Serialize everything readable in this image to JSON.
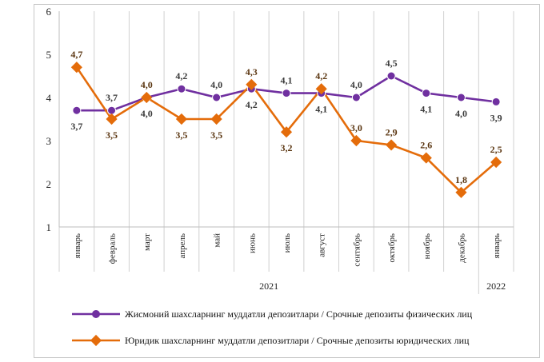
{
  "chart_data": {
    "type": "line",
    "categories": [
      "январь",
      "февраль",
      "март",
      "апрель",
      "май",
      "июнь",
      "июль",
      "август",
      "сентябрь",
      "октябрь",
      "ноябрь",
      "декабрь",
      "январь"
    ],
    "year_labels": [
      {
        "label": "2021",
        "from": 0,
        "to": 11
      },
      {
        "label": "2022",
        "from": 12,
        "to": 12
      }
    ],
    "ylim": [
      1,
      6
    ],
    "yticks": [
      1,
      2,
      3,
      4,
      5,
      6
    ],
    "series": [
      {
        "name": "Жисмоний шахсларнинг муддатли депозитлари / Срочные депозиты физических лиц",
        "color": "#7030a0",
        "values": [
          3.7,
          3.7,
          4.0,
          4.2,
          4.0,
          4.2,
          4.1,
          4.1,
          4.0,
          4.5,
          4.1,
          4.0,
          3.9
        ],
        "labels": [
          "3,7",
          "3,7",
          "4,0",
          "4,2",
          "4,0",
          "4,2",
          "4,1",
          "4,1",
          "4,0",
          "4,5",
          "4,1",
          "4,0",
          "3,9"
        ]
      },
      {
        "name": "Юридик шахсларнинг муддатли депозитлари / Срочные депозиты юридических лиц",
        "color": "#e46c0a",
        "values": [
          4.7,
          3.5,
          4.0,
          3.5,
          3.5,
          4.3,
          3.2,
          4.2,
          3.0,
          2.9,
          2.6,
          1.8,
          2.5
        ],
        "labels": [
          "4,7",
          "3,5",
          "4,0",
          "3,5",
          "3,5",
          "4,3",
          "3,2",
          "4,2",
          "3,0",
          "2,9",
          "2,6",
          "1,8",
          "2,5"
        ]
      }
    ]
  }
}
